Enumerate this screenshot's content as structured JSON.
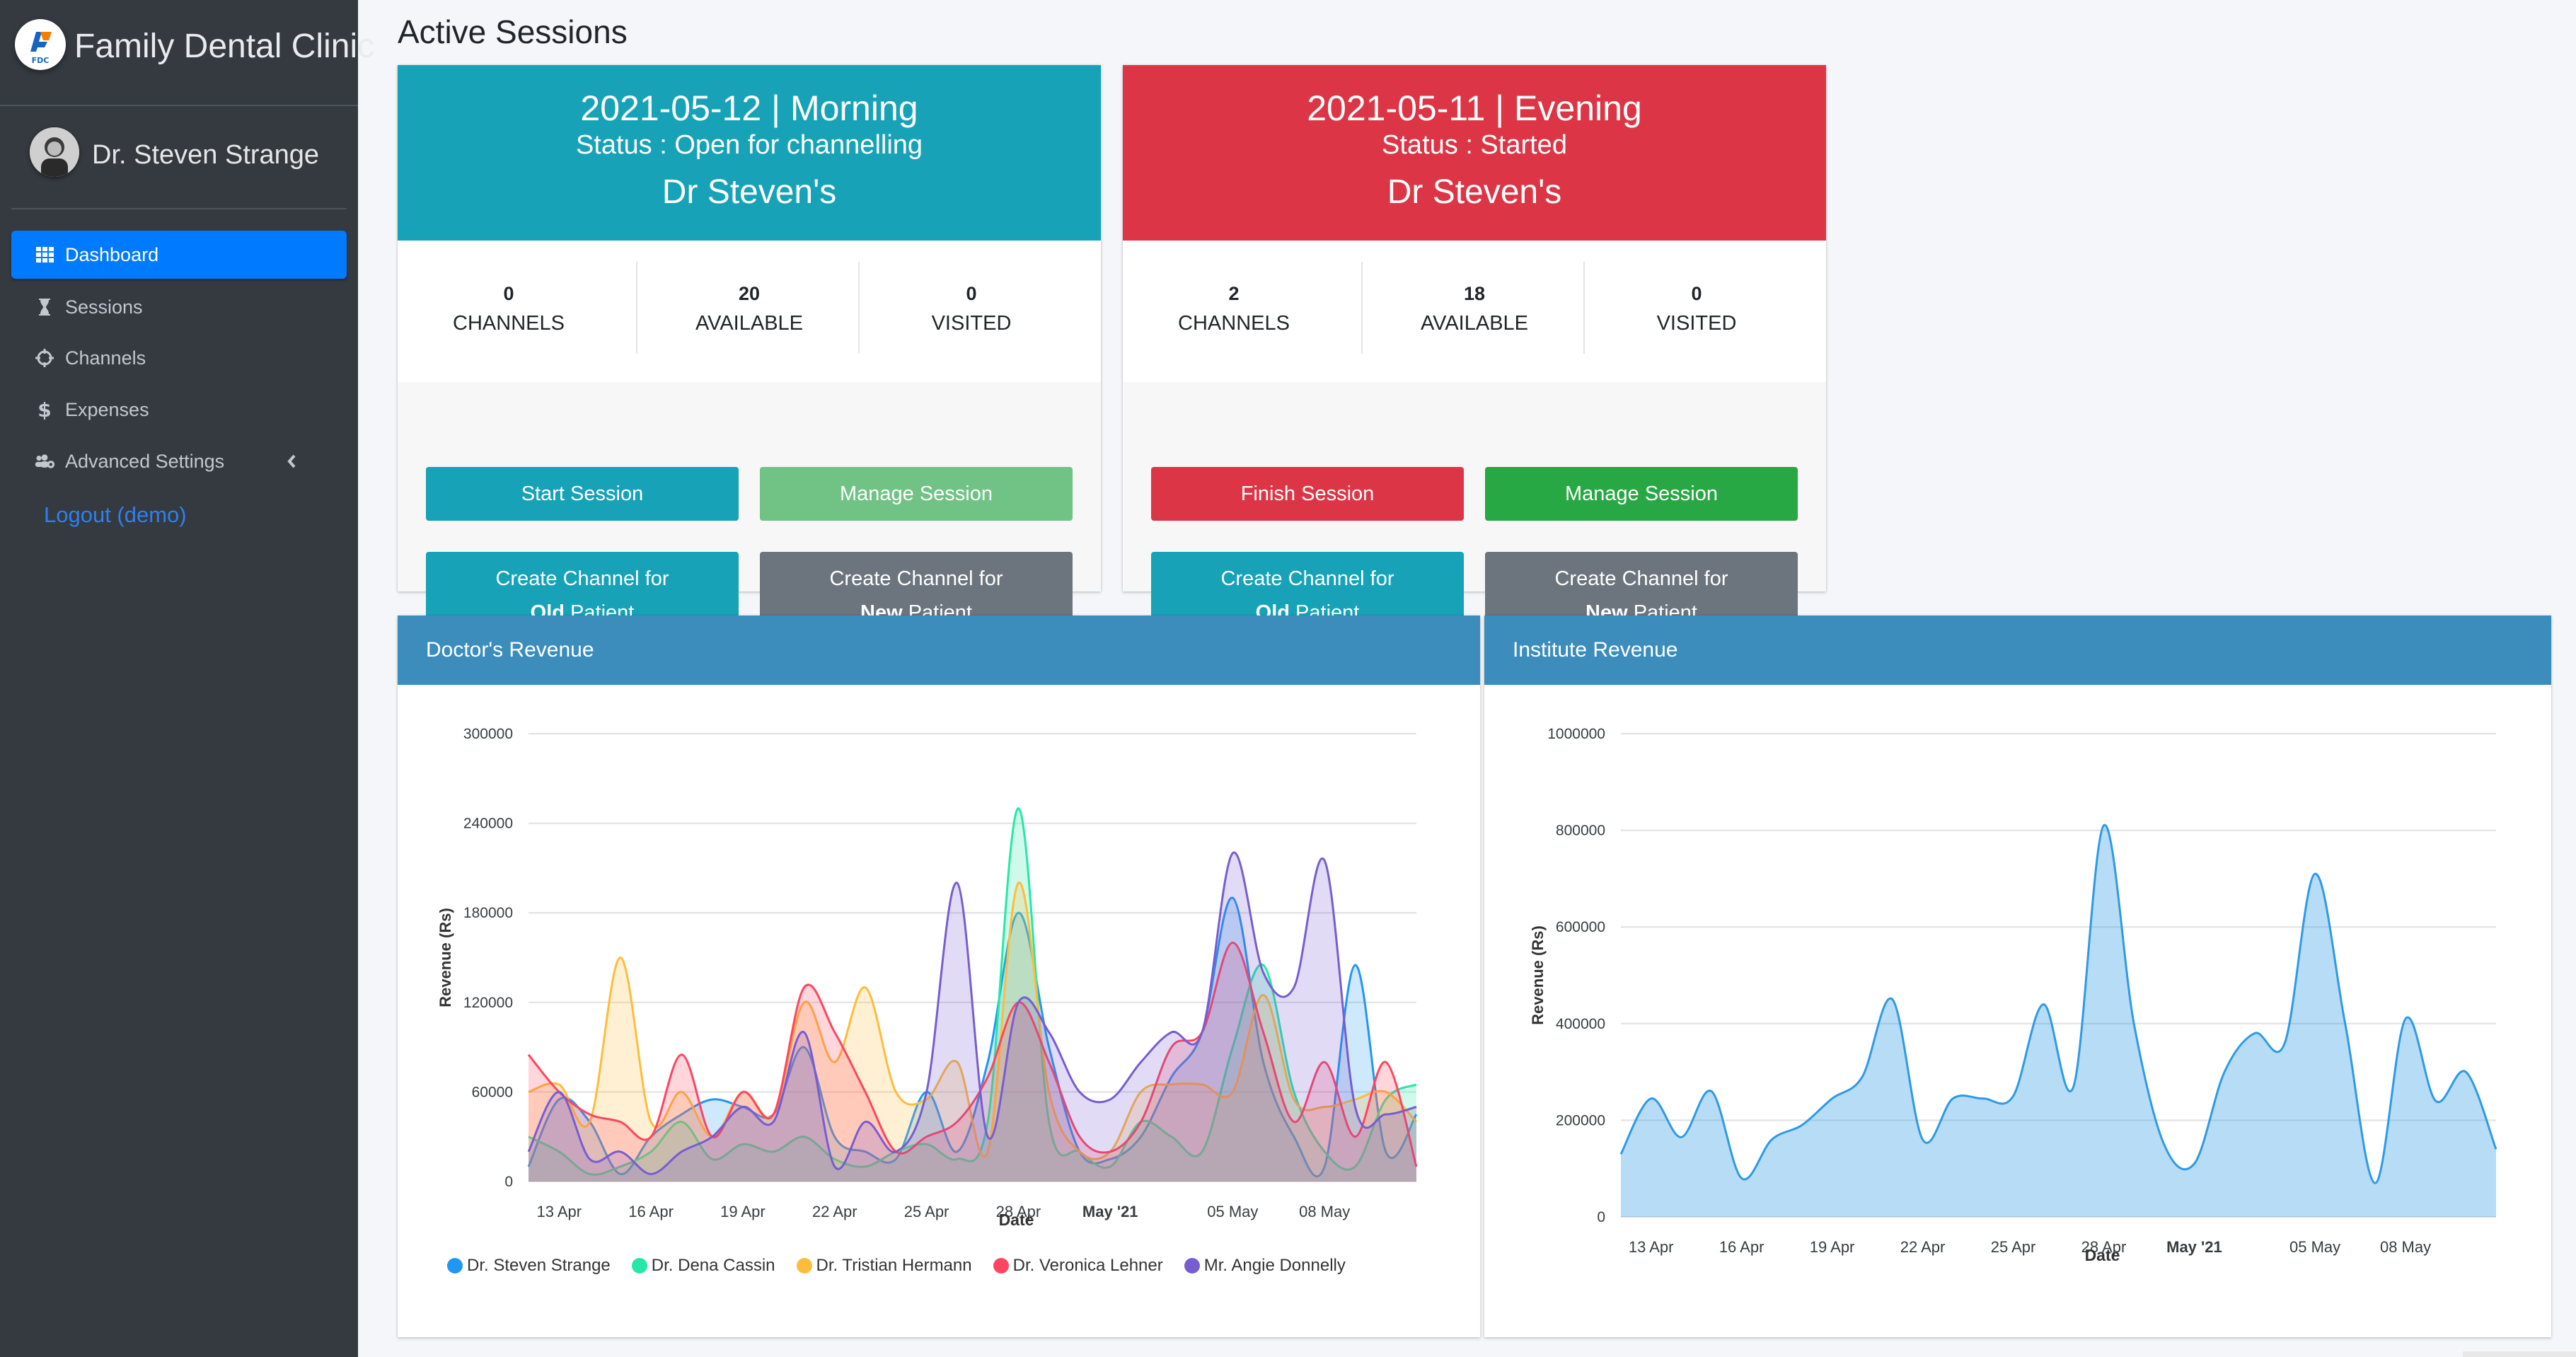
{
  "brand": {
    "name": "Family Dental Clinic",
    "logo_text": "FDC"
  },
  "user": {
    "name": "Dr. Steven Strange"
  },
  "nav": {
    "items": [
      {
        "label": "Dashboard",
        "icon": "grid-icon",
        "active": true
      },
      {
        "label": "Sessions",
        "icon": "hourglass-icon"
      },
      {
        "label": "Channels",
        "icon": "crosshair-icon"
      },
      {
        "label": "Expenses",
        "icon": "dollar-icon"
      },
      {
        "label": "Advanced Settings",
        "icon": "users-gear-icon"
      }
    ],
    "logout": "Logout (demo)"
  },
  "page": {
    "title": "Active Sessions"
  },
  "sessions": [
    {
      "date_slot": "2021-05-12 | Morning",
      "status": "Status : Open for channelling",
      "doctor": "Dr Steven's",
      "color": "#17a2b8",
      "stats": [
        {
          "value": "0",
          "label": "CHANNELS"
        },
        {
          "value": "20",
          "label": "AVAILABLE"
        },
        {
          "value": "0",
          "label": "VISITED"
        }
      ],
      "primary_button": "Start Session",
      "manage_button": "Manage Session",
      "old_patient": {
        "line1": "Create Channel for",
        "line2": "Old",
        "line3": " Patient"
      },
      "new_patient": {
        "line1": "Create Channel for",
        "line2": "New",
        "line3": " Patient"
      }
    },
    {
      "date_slot": "2021-05-11 | Evening",
      "status": "Status : Started",
      "doctor": "Dr Steven's",
      "color": "#dc3545",
      "stats": [
        {
          "value": "2",
          "label": "CHANNELS"
        },
        {
          "value": "18",
          "label": "AVAILABLE"
        },
        {
          "value": "0",
          "label": "VISITED"
        }
      ],
      "primary_button": "Finish Session",
      "manage_button": "Manage Session",
      "old_patient": {
        "line1": "Create Channel for",
        "line2": "Old",
        "line3": " Patient"
      },
      "new_patient": {
        "line1": "Create Channel for",
        "line2": "New",
        "line3": " Patient"
      }
    }
  ],
  "chart_data": [
    {
      "type": "area",
      "title": "Doctor's Revenue",
      "xlabel": "Date",
      "ylabel": "Revenue (Rs)",
      "ylim": [
        0,
        300000
      ],
      "yticks": [
        "0",
        "60000",
        "120000",
        "180000",
        "240000",
        "300000"
      ],
      "xticks": [
        "13 Apr",
        "16 Apr",
        "19 Apr",
        "22 Apr",
        "25 Apr",
        "28 Apr",
        "May '21",
        "05 May",
        "08 May"
      ],
      "x": [
        "12 Apr",
        "13 Apr",
        "14 Apr",
        "15 Apr",
        "16 Apr",
        "17 Apr",
        "18 Apr",
        "19 Apr",
        "20 Apr",
        "21 Apr",
        "22 Apr",
        "23 Apr",
        "24 Apr",
        "25 Apr",
        "26 Apr",
        "27 Apr",
        "28 Apr",
        "29 Apr",
        "30 Apr",
        "01 May",
        "02 May",
        "03 May",
        "04 May",
        "05 May",
        "06 May",
        "07 May",
        "08 May",
        "09 May",
        "10 May",
        "11 May"
      ],
      "series": [
        {
          "name": "Dr. Steven Strange",
          "color": "#2196f3",
          "values": [
            10000,
            55000,
            40000,
            5000,
            30000,
            45000,
            55000,
            50000,
            45000,
            90000,
            30000,
            20000,
            15000,
            60000,
            20000,
            80000,
            180000,
            90000,
            20000,
            15000,
            30000,
            70000,
            100000,
            190000,
            80000,
            30000,
            10000,
            145000,
            20000,
            45000
          ]
        },
        {
          "name": "Dr. Dena Cassin",
          "color": "#26e7a6",
          "values": [
            30000,
            20000,
            5000,
            10000,
            20000,
            40000,
            15000,
            25000,
            20000,
            30000,
            15000,
            10000,
            20000,
            25000,
            15000,
            40000,
            250000,
            40000,
            20000,
            10000,
            40000,
            30000,
            20000,
            90000,
            145000,
            60000,
            20000,
            10000,
            55000,
            65000
          ]
        },
        {
          "name": "Dr. Tristian Hermann",
          "color": "#febc3b",
          "values": [
            60000,
            65000,
            40000,
            150000,
            40000,
            60000,
            30000,
            60000,
            45000,
            120000,
            80000,
            130000,
            60000,
            55000,
            80000,
            20000,
            200000,
            60000,
            20000,
            20000,
            60000,
            65000,
            65000,
            60000,
            125000,
            55000,
            50000,
            55000,
            60000,
            40000
          ]
        },
        {
          "name": "Dr. Veronica Lehner",
          "color": "#ff4560",
          "values": [
            85000,
            60000,
            45000,
            40000,
            30000,
            85000,
            30000,
            60000,
            45000,
            130000,
            100000,
            60000,
            20000,
            30000,
            40000,
            70000,
            120000,
            80000,
            30000,
            20000,
            40000,
            90000,
            100000,
            160000,
            100000,
            40000,
            80000,
            30000,
            80000,
            10000
          ]
        },
        {
          "name": "Mr. Angie Donnelly",
          "color": "#775dd0",
          "values": [
            20000,
            60000,
            15000,
            20000,
            5000,
            20000,
            30000,
            50000,
            40000,
            100000,
            10000,
            40000,
            20000,
            60000,
            200000,
            30000,
            120000,
            100000,
            60000,
            55000,
            80000,
            100000,
            100000,
            220000,
            140000,
            130000,
            215000,
            50000,
            45000,
            50000
          ]
        }
      ]
    },
    {
      "type": "area",
      "title": "Institute Revenue",
      "xlabel": "Date",
      "ylabel": "Revenue (Rs)",
      "ylim": [
        0,
        1000000
      ],
      "yticks": [
        "0",
        "200000",
        "400000",
        "600000",
        "800000",
        "1000000"
      ],
      "xticks": [
        "13 Apr",
        "16 Apr",
        "19 Apr",
        "22 Apr",
        "25 Apr",
        "28 Apr",
        "May '21",
        "05 May",
        "08 May"
      ],
      "x": [
        "12 Apr",
        "13 Apr",
        "14 Apr",
        "15 Apr",
        "16 Apr",
        "17 Apr",
        "18 Apr",
        "19 Apr",
        "20 Apr",
        "21 Apr",
        "22 Apr",
        "23 Apr",
        "24 Apr",
        "25 Apr",
        "26 Apr",
        "27 Apr",
        "28 Apr",
        "29 Apr",
        "30 Apr",
        "01 May",
        "02 May",
        "03 May",
        "04 May",
        "05 May",
        "06 May",
        "07 May",
        "08 May",
        "09 May",
        "10 May",
        "11 May"
      ],
      "series": [
        {
          "name": "Institute Revenue",
          "color": "#2e9ae6",
          "values": [
            130000,
            245000,
            165000,
            260000,
            80000,
            160000,
            190000,
            245000,
            290000,
            450000,
            160000,
            245000,
            245000,
            250000,
            440000,
            270000,
            810000,
            400000,
            150000,
            110000,
            300000,
            380000,
            360000,
            710000,
            400000,
            70000,
            410000,
            240000,
            300000,
            140000
          ]
        }
      ]
    }
  ]
}
